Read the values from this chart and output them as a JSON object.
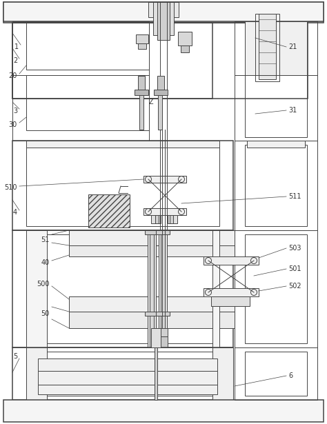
{
  "bg_color": "#ffffff",
  "lc": "#444444",
  "lw": 0.7,
  "tlw": 1.1
}
